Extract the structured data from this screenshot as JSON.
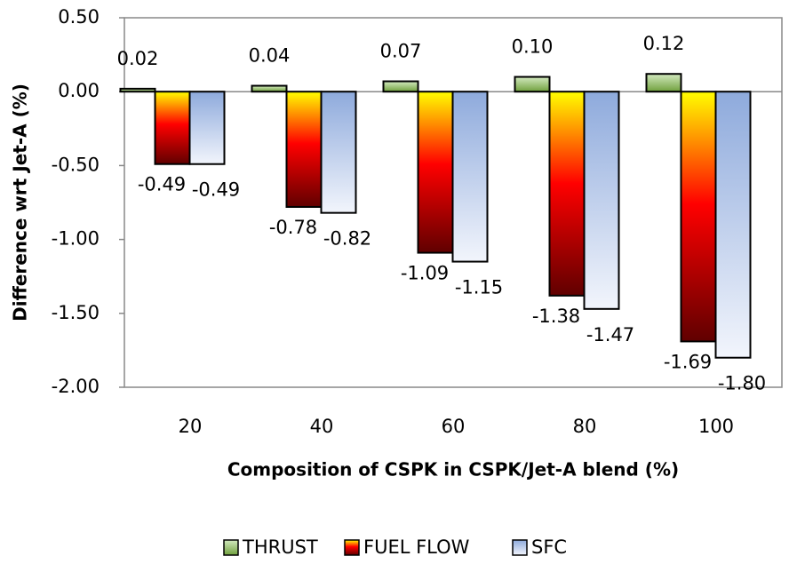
{
  "chart_data": {
    "type": "bar",
    "xlabel": "Composition of CSPK in CSPK/Jet-A blend (%)",
    "ylabel": "Difference wrt Jet-A (%)",
    "categories": [
      "20",
      "40",
      "60",
      "80",
      "100"
    ],
    "series": [
      {
        "name": "THRUST",
        "color": "#6fa03c",
        "values": [
          0.02,
          0.04,
          0.07,
          0.1,
          0.12
        ],
        "value_labels": [
          "0.02",
          "0.04",
          "0.07",
          "0.10",
          "0.12"
        ]
      },
      {
        "name": "FUEL FLOW",
        "color": "#ff0000",
        "values": [
          -0.49,
          -0.78,
          -1.09,
          -1.38,
          -1.69
        ],
        "value_labels": [
          "-0.49",
          "-0.78",
          "-1.09",
          "-1.38",
          "-1.69"
        ]
      },
      {
        "name": "SFC",
        "color": "#8eaadc",
        "values": [
          -0.49,
          -0.82,
          -1.15,
          -1.47,
          -1.8
        ],
        "value_labels": [
          "-0.49",
          "-0.82",
          "-1.15",
          "-1.47",
          "-1.80"
        ]
      }
    ],
    "ylim": [
      -2.0,
      0.5
    ],
    "yticks": [
      {
        "value": 0.5,
        "label": "0.50"
      },
      {
        "value": 0,
        "label": "0.00"
      },
      {
        "value": -0.5,
        "label": "-0.50"
      },
      {
        "value": -1.0,
        "label": "-1.00"
      },
      {
        "value": -1.5,
        "label": "-1.50"
      },
      {
        "value": -2.0,
        "label": "-2.00"
      }
    ],
    "grid": false,
    "legend": "bottom"
  }
}
